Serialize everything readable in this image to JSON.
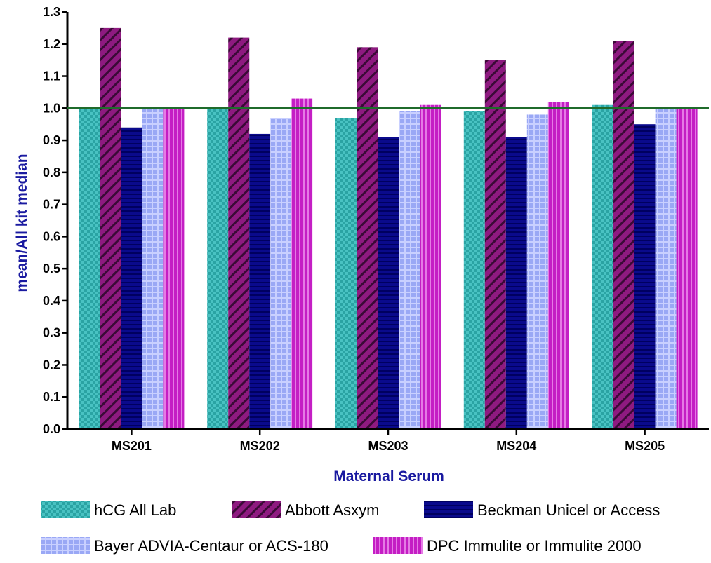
{
  "chart_data": {
    "type": "bar",
    "title": "",
    "xlabel": "Maternal Serum",
    "ylabel": "mean/All kit median",
    "categories": [
      "MS201",
      "MS202",
      "MS203",
      "MS204",
      "MS205"
    ],
    "ylim": [
      0.0,
      1.3
    ],
    "yticks": [
      "0.0",
      "0.1",
      "0.2",
      "0.3",
      "0.4",
      "0.5",
      "0.6",
      "0.7",
      "0.8",
      "0.9",
      "1.0",
      "1.1",
      "1.2",
      "1.3"
    ],
    "reference_line": {
      "value": 1.0,
      "color": "#1f6b2b"
    },
    "legend_position": "bottom",
    "grid": false,
    "series": [
      {
        "name": "hCG All Lab",
        "color": "#2aa3a3",
        "pattern": "checker",
        "values": [
          1.0,
          1.0,
          0.97,
          0.99,
          1.01
        ]
      },
      {
        "name": "Abbott Asxym",
        "color": "#8e1a80",
        "pattern": "diagonal",
        "values": [
          1.25,
          1.22,
          1.19,
          1.15,
          1.21
        ]
      },
      {
        "name": "Beckman Unicel or Access",
        "color": "#0a0a8c",
        "pattern": "hlines",
        "values": [
          0.94,
          0.92,
          0.91,
          0.91,
          0.95
        ]
      },
      {
        "name": "Bayer ADVIA-Centaur or ACS-180",
        "color": "#9aa8f5",
        "pattern": "grid",
        "values": [
          1.0,
          0.97,
          0.99,
          0.98,
          1.0
        ]
      },
      {
        "name": "DPC Immulite or Immulite 2000",
        "color": "#c41ec4",
        "pattern": "vlines",
        "values": [
          1.0,
          1.03,
          1.01,
          1.02,
          1.0
        ]
      }
    ]
  }
}
